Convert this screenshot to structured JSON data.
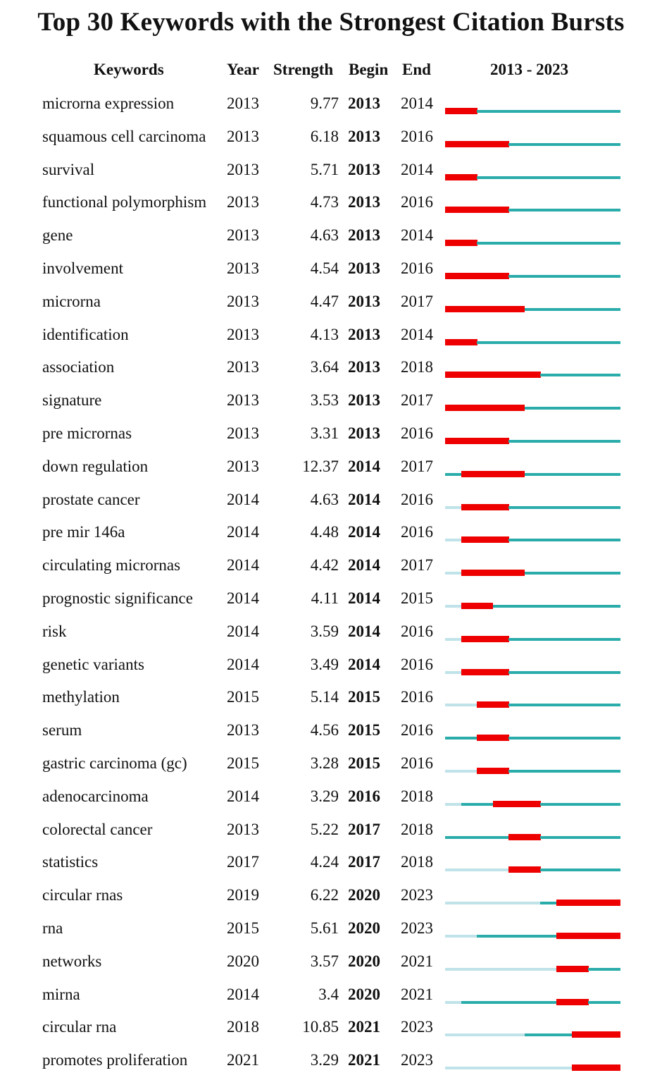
{
  "title": "Top 30 Keywords with the Strongest Citation Bursts",
  "headers": {
    "keywords": "Keywords",
    "year": "Year",
    "strength": "Strength",
    "begin": "Begin",
    "end": "End",
    "range": "2013 - 2023"
  },
  "colors": {
    "burst": "#ee0000",
    "active": "#2aacaa",
    "inactive": "#bfe3e8"
  },
  "chart_data": {
    "type": "table",
    "range_start": 2013,
    "range_end": 2023,
    "rows": [
      {
        "keyword": "microrna expression",
        "year": "2013",
        "strength": "9.77",
        "begin": "2013",
        "end": "2014"
      },
      {
        "keyword": "squamous cell carcinoma",
        "year": "2013",
        "strength": "6.18",
        "begin": "2013",
        "end": "2016"
      },
      {
        "keyword": "survival",
        "year": "2013",
        "strength": "5.71",
        "begin": "2013",
        "end": "2014"
      },
      {
        "keyword": "functional polymorphism",
        "year": "2013",
        "strength": "4.73",
        "begin": "2013",
        "end": "2016"
      },
      {
        "keyword": "gene",
        "year": "2013",
        "strength": "4.63",
        "begin": "2013",
        "end": "2014"
      },
      {
        "keyword": "involvement",
        "year": "2013",
        "strength": "4.54",
        "begin": "2013",
        "end": "2016"
      },
      {
        "keyword": "microrna",
        "year": "2013",
        "strength": "4.47",
        "begin": "2013",
        "end": "2017"
      },
      {
        "keyword": "identification",
        "year": "2013",
        "strength": "4.13",
        "begin": "2013",
        "end": "2014"
      },
      {
        "keyword": "association",
        "year": "2013",
        "strength": "3.64",
        "begin": "2013",
        "end": "2018"
      },
      {
        "keyword": "signature",
        "year": "2013",
        "strength": "3.53",
        "begin": "2013",
        "end": "2017"
      },
      {
        "keyword": "pre micrornas",
        "year": "2013",
        "strength": "3.31",
        "begin": "2013",
        "end": "2016"
      },
      {
        "keyword": "down regulation",
        "year": "2013",
        "strength": "12.37",
        "begin": "2014",
        "end": "2017"
      },
      {
        "keyword": "prostate cancer",
        "year": "2014",
        "strength": "4.63",
        "begin": "2014",
        "end": "2016"
      },
      {
        "keyword": "pre mir 146a",
        "year": "2014",
        "strength": "4.48",
        "begin": "2014",
        "end": "2016"
      },
      {
        "keyword": "circulating micrornas",
        "year": "2014",
        "strength": "4.42",
        "begin": "2014",
        "end": "2017"
      },
      {
        "keyword": "prognostic significance",
        "year": "2014",
        "strength": "4.11",
        "begin": "2014",
        "end": "2015"
      },
      {
        "keyword": "risk",
        "year": "2014",
        "strength": "3.59",
        "begin": "2014",
        "end": "2016"
      },
      {
        "keyword": "genetic variants",
        "year": "2014",
        "strength": "3.49",
        "begin": "2014",
        "end": "2016"
      },
      {
        "keyword": "methylation",
        "year": "2015",
        "strength": "5.14",
        "begin": "2015",
        "end": "2016"
      },
      {
        "keyword": "serum",
        "year": "2013",
        "strength": "4.56",
        "begin": "2015",
        "end": "2016"
      },
      {
        "keyword": "gastric carcinoma (gc)",
        "year": "2015",
        "strength": "3.28",
        "begin": "2015",
        "end": "2016"
      },
      {
        "keyword": "adenocarcinoma",
        "year": "2014",
        "strength": "3.29",
        "begin": "2016",
        "end": "2018"
      },
      {
        "keyword": "colorectal cancer",
        "year": "2013",
        "strength": "5.22",
        "begin": "2017",
        "end": "2018"
      },
      {
        "keyword": "statistics",
        "year": "2017",
        "strength": "4.24",
        "begin": "2017",
        "end": "2018"
      },
      {
        "keyword": "circular rnas",
        "year": "2019",
        "strength": "6.22",
        "begin": "2020",
        "end": "2023"
      },
      {
        "keyword": "rna",
        "year": "2015",
        "strength": "5.61",
        "begin": "2020",
        "end": "2023"
      },
      {
        "keyword": "networks",
        "year": "2020",
        "strength": "3.57",
        "begin": "2020",
        "end": "2021"
      },
      {
        "keyword": "mirna",
        "year": "2014",
        "strength": "3.4",
        "begin": "2020",
        "end": "2021"
      },
      {
        "keyword": "circular rna",
        "year": "2018",
        "strength": "10.85",
        "begin": "2021",
        "end": "2023"
      },
      {
        "keyword": "promotes proliferation",
        "year": "2021",
        "strength": "3.29",
        "begin": "2021",
        "end": "2023"
      }
    ]
  }
}
